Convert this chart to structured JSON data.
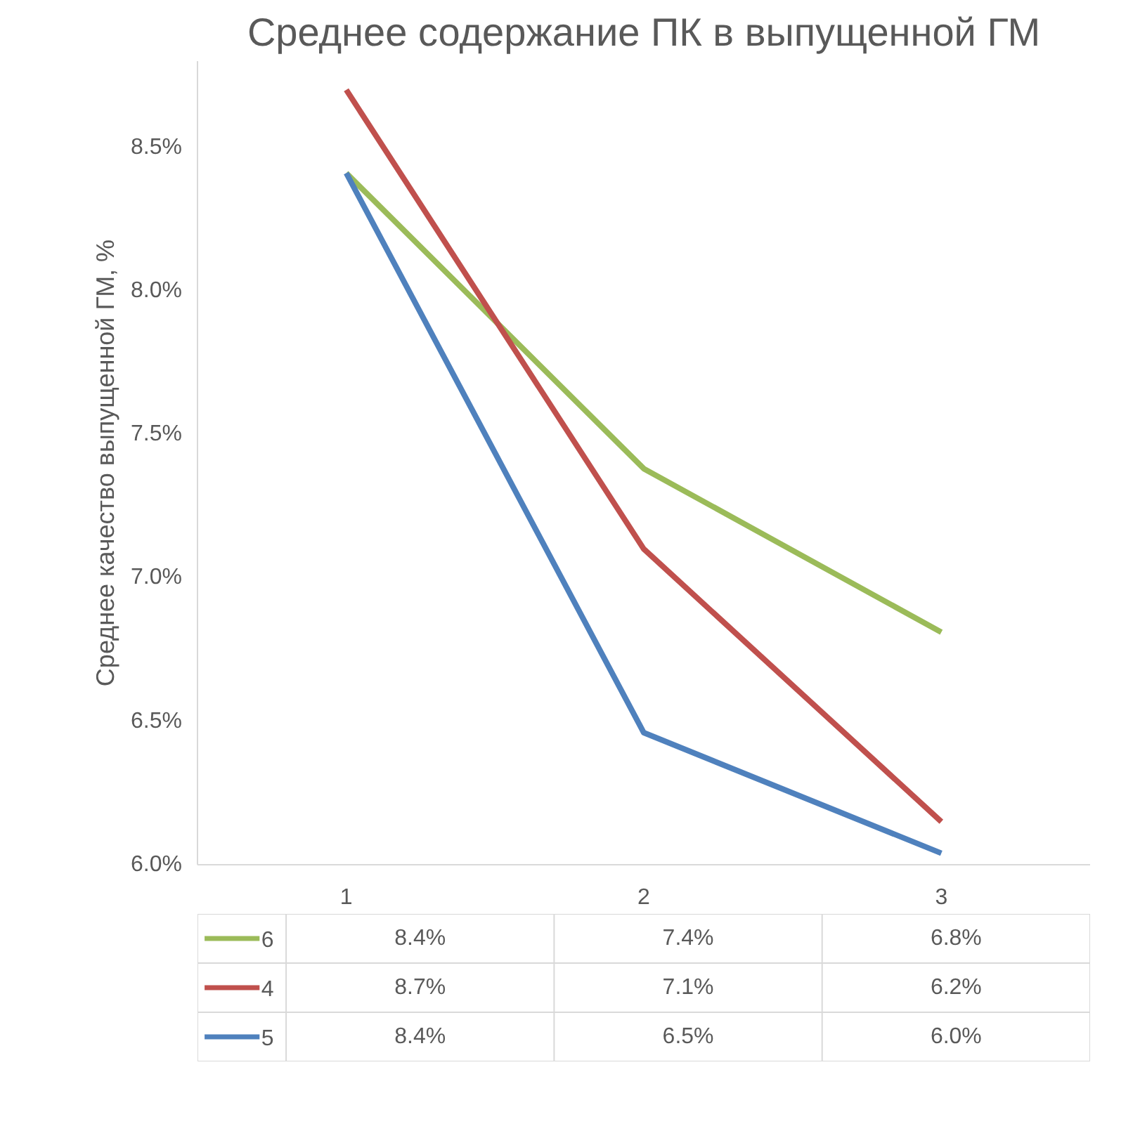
{
  "chart_data": {
    "type": "line",
    "title": "Среднее содержание ПК в выпущенной ГМ",
    "ylabel": "Среднее качество выпущенной ГМ, %",
    "categories": [
      "1",
      "2",
      "3"
    ],
    "ylim": [
      6.0,
      8.8
    ],
    "yticks": [
      {
        "value": 6.0,
        "label": "6.0%"
      },
      {
        "value": 6.5,
        "label": "6.5%"
      },
      {
        "value": 7.0,
        "label": "7.0%"
      },
      {
        "value": 7.5,
        "label": "7.5%"
      },
      {
        "value": 8.0,
        "label": "8.0%"
      },
      {
        "value": 8.5,
        "label": "8.5%"
      }
    ],
    "grid": false,
    "legend": "bottom",
    "line_style": "solid",
    "series": [
      {
        "name": "6",
        "color": "#9bbb59",
        "values": [
          8.41,
          7.38,
          6.81
        ],
        "value_labels": [
          "8.4%",
          "7.4%",
          "6.8%"
        ]
      },
      {
        "name": "4",
        "color": "#c0504d",
        "values": [
          8.7,
          7.1,
          6.15
        ],
        "value_labels": [
          "8.7%",
          "7.1%",
          "6.2%"
        ]
      },
      {
        "name": "5",
        "color": "#4f81bd",
        "values": [
          8.41,
          6.46,
          6.04
        ],
        "value_labels": [
          "8.4%",
          "6.5%",
          "6.0%"
        ]
      }
    ]
  }
}
